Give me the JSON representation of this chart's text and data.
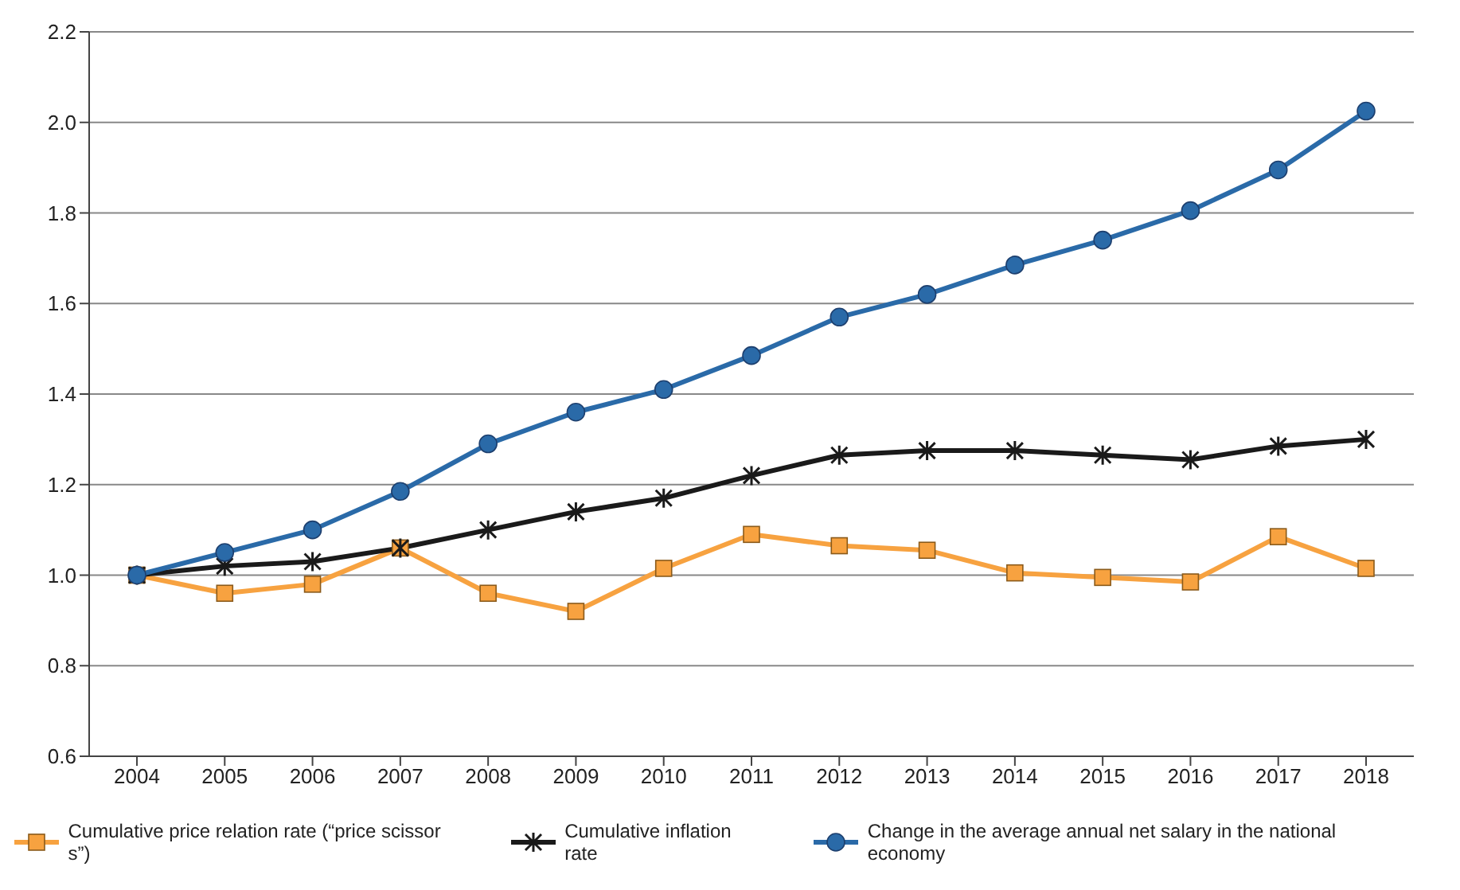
{
  "chart_data": {
    "type": "line",
    "categories": [
      "2004",
      "2005",
      "2006",
      "2007",
      "2008",
      "2009",
      "2010",
      "2011",
      "2012",
      "2013",
      "2014",
      "2015",
      "2016",
      "2017",
      "2018"
    ],
    "series": [
      {
        "name": "Cumulative price relation rate (“price scissor s”)",
        "color": "#f7a240",
        "marker": "square",
        "values": [
          1.0,
          0.96,
          0.98,
          1.06,
          0.96,
          0.92,
          1.015,
          1.09,
          1.065,
          1.055,
          1.005,
          0.995,
          0.985,
          1.085,
          1.015
        ]
      },
      {
        "name": "Cumulative inflation rate",
        "color": "#1a1a1a",
        "marker": "cross",
        "values": [
          1.0,
          1.02,
          1.03,
          1.06,
          1.1,
          1.14,
          1.17,
          1.22,
          1.265,
          1.275,
          1.275,
          1.265,
          1.255,
          1.285,
          1.3
        ]
      },
      {
        "name": "Change in the average annual net salary in the national economy",
        "color": "#2a6aa8",
        "marker": "circle",
        "values": [
          1.0,
          1.05,
          1.1,
          1.185,
          1.29,
          1.36,
          1.41,
          1.485,
          1.57,
          1.62,
          1.685,
          1.74,
          1.805,
          1.895,
          2.025
        ]
      }
    ],
    "ylim": [
      0.6,
      2.2
    ],
    "yticks": [
      {
        "value": 0.6,
        "label": "0.6"
      },
      {
        "value": 0.8,
        "label": "0.8"
      },
      {
        "value": 1.0,
        "label": "1.0"
      },
      {
        "value": 1.2,
        "label": "1.2"
      },
      {
        "value": 1.4,
        "label": "1.4"
      },
      {
        "value": 1.6,
        "label": "1.6"
      },
      {
        "value": 1.8,
        "label": "1.8"
      },
      {
        "value": 2.0,
        "label": "2.0"
      },
      {
        "value": 2.2,
        "label": "2.2"
      }
    ],
    "grid": "y",
    "legend": "bottom"
  }
}
